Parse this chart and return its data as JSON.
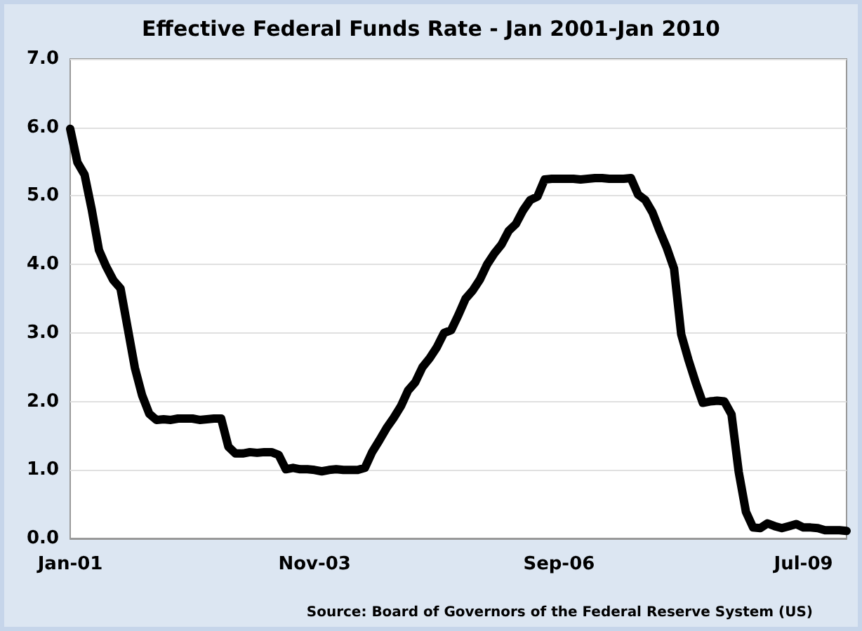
{
  "chart_data": {
    "type": "line",
    "title": "Effective Federal Funds Rate - Jan 2001-Jan 2010",
    "categories": [
      "Jan-01",
      null,
      null,
      null,
      null,
      null,
      null,
      null,
      null,
      null,
      null,
      null,
      null,
      null,
      null,
      null,
      null,
      null,
      null,
      null,
      null,
      null,
      null,
      null,
      null,
      null,
      null,
      null,
      null,
      null,
      null,
      null,
      null,
      null,
      "Nov-03",
      null,
      null,
      null,
      null,
      null,
      null,
      null,
      null,
      null,
      null,
      null,
      null,
      null,
      null,
      null,
      null,
      null,
      null,
      null,
      null,
      null,
      null,
      null,
      null,
      null,
      null,
      null,
      null,
      null,
      null,
      null,
      null,
      null,
      "Sep-06",
      null,
      null,
      null,
      null,
      null,
      null,
      null,
      null,
      null,
      null,
      null,
      null,
      null,
      null,
      null,
      null,
      null,
      null,
      null,
      null,
      null,
      null,
      null,
      null,
      null,
      null,
      null,
      null,
      null,
      null,
      null,
      null,
      null,
      "Jul-09",
      null,
      null,
      null,
      null,
      null,
      null
    ],
    "series": [
      {
        "color": "#000000",
        "values": [
          5.98,
          5.49,
          5.31,
          4.8,
          4.21,
          3.97,
          3.77,
          3.65,
          3.07,
          2.49,
          2.09,
          1.82,
          1.73,
          1.74,
          1.73,
          1.75,
          1.75,
          1.75,
          1.73,
          1.74,
          1.75,
          1.75,
          1.34,
          1.24,
          1.24,
          1.26,
          1.25,
          1.26,
          1.26,
          1.22,
          1.01,
          1.03,
          1.01,
          1.01,
          1.0,
          0.98,
          1.0,
          1.01,
          1.0,
          1.0,
          1.0,
          1.03,
          1.26,
          1.43,
          1.61,
          1.76,
          1.93,
          2.16,
          2.28,
          2.5,
          2.63,
          2.79,
          3.0,
          3.04,
          3.26,
          3.5,
          3.62,
          3.78,
          4.0,
          4.16,
          4.29,
          4.49,
          4.59,
          4.79,
          4.94,
          4.99,
          5.24,
          5.25,
          5.25,
          5.25,
          5.25,
          5.24,
          5.25,
          5.26,
          5.26,
          5.25,
          5.25,
          5.25,
          5.26,
          5.02,
          4.94,
          4.76,
          4.49,
          4.24,
          3.94,
          2.98,
          2.61,
          2.28,
          1.98,
          2.0,
          2.01,
          2.0,
          1.81,
          0.97,
          0.39,
          0.16,
          0.15,
          0.22,
          0.18,
          0.15,
          0.18,
          0.21,
          0.16,
          0.16,
          0.15,
          0.12,
          0.12,
          0.12,
          0.11
        ]
      }
    ],
    "ylim": [
      0,
      7
    ],
    "yticks": [
      {
        "value": 0,
        "label": "0.0"
      },
      {
        "value": 1,
        "label": "1.0"
      },
      {
        "value": 2,
        "label": "2.0"
      },
      {
        "value": 3,
        "label": "3.0"
      },
      {
        "value": 4,
        "label": "4.0"
      },
      {
        "value": 5,
        "label": "5.0"
      },
      {
        "value": 6,
        "label": "6.0"
      },
      {
        "value": 7,
        "label": "7.0"
      }
    ],
    "grid": "y",
    "marker": "none",
    "line_style": "solid",
    "annotations": [
      "Source: Board of Governors of the Federal Reserve System (US)"
    ]
  }
}
